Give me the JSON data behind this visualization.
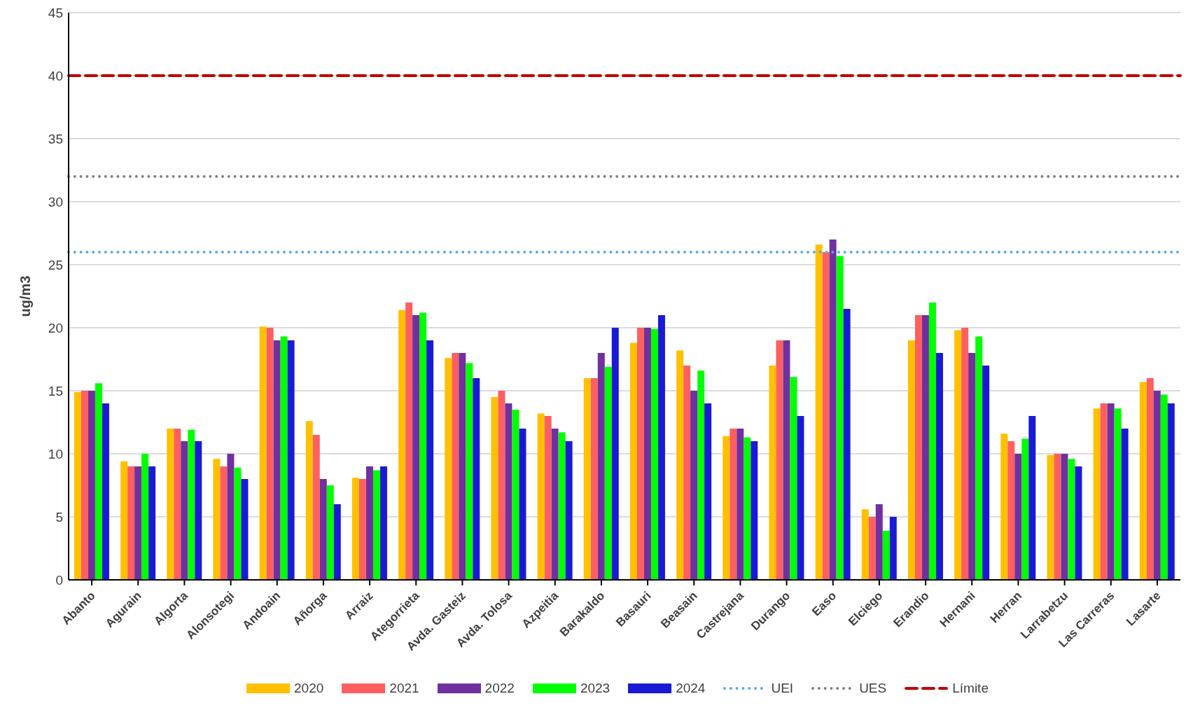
{
  "chart_data": {
    "type": "bar",
    "ylabel": "ug/m3",
    "categories": [
      "Abanto",
      "Agurain",
      "Algorta",
      "Alonsotegi",
      "Andoain",
      "Añorga",
      "Arraiz",
      "Ategorrieta",
      "Avda. Gasteiz",
      "Avda. Tolosa",
      "Azpeitia",
      "Barakaldo",
      "Basauri",
      "Beasain",
      "Castrejana",
      "Durango",
      "Easo",
      "Elciego",
      "Erandio",
      "Hernani",
      "Herran",
      "Larrabetzu",
      "Las Carreras",
      "Lasarte"
    ],
    "series": [
      {
        "name": "2020",
        "color": "#ffc000",
        "values": [
          14.9,
          9.4,
          12,
          9.6,
          20.1,
          12.6,
          8.1,
          21.4,
          17.6,
          14.5,
          13.2,
          16,
          18.8,
          18.2,
          11.4,
          17,
          26.6,
          5.6,
          19,
          19.8,
          11.6,
          9.9,
          13.6,
          15.7
        ]
      },
      {
        "name": "2021",
        "color": "#ff5f5f",
        "values": [
          15,
          9,
          12,
          9,
          20,
          11.5,
          8,
          22,
          18,
          15,
          13,
          16,
          20,
          17,
          12,
          19,
          26,
          5,
          21,
          20,
          11,
          10,
          14,
          16
        ]
      },
      {
        "name": "2022",
        "color": "#7030a0",
        "values": [
          15,
          9,
          11,
          10,
          19,
          8,
          9,
          21,
          18,
          14,
          12,
          18,
          20,
          15,
          12,
          19,
          27,
          6,
          21,
          18,
          10,
          10,
          14,
          15
        ]
      },
      {
        "name": "2023",
        "color": "#00ff00",
        "values": [
          15.6,
          10,
          11.9,
          8.9,
          19.3,
          7.5,
          8.7,
          21.2,
          17.2,
          13.5,
          11.7,
          16.9,
          19.9,
          16.6,
          11.3,
          16.1,
          25.7,
          3.9,
          22,
          19.3,
          11.2,
          9.6,
          13.6,
          14.7
        ]
      },
      {
        "name": "2024",
        "color": "#1a1ad6",
        "values": [
          14,
          9,
          11,
          8,
          19,
          6,
          9,
          19,
          16,
          12,
          11,
          20,
          21,
          14,
          11,
          13,
          21.5,
          5,
          18,
          17,
          13,
          9,
          12,
          14
        ]
      }
    ],
    "ref_lines": [
      {
        "axis": "y",
        "value": 26,
        "label": "UEI",
        "color": "#5aa9e6",
        "line_style": "dotted"
      },
      {
        "axis": "y",
        "value": 32,
        "label": "UES",
        "color": "#808080",
        "line_style": "dotted"
      },
      {
        "axis": "y",
        "value": 40,
        "label": "Límite",
        "color": "#c00000",
        "line_style": "dashed"
      }
    ],
    "ylim": [
      0,
      45
    ],
    "yticks": [
      0,
      5,
      10,
      15,
      20,
      25,
      30,
      35,
      40,
      45
    ],
    "grid": "y",
    "legend": "bottom"
  }
}
